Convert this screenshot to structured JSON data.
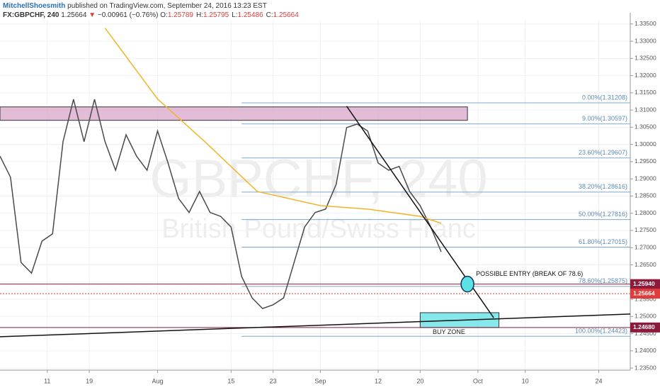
{
  "header": {
    "author": "MitchellShoesmith",
    "published": "published on TradingView.com, September 24, 2016 13:23 EST",
    "symbol": "FX:GBPCHF, 240",
    "last": "1.25664",
    "direction": "▼",
    "change": "−0.00961 (−0.76%)",
    "ohlc": [
      {
        "label": "O:",
        "value": "1.25789"
      },
      {
        "label": "H:",
        "value": "1.25795"
      },
      {
        "label": "L:",
        "value": "1.25486"
      },
      {
        "label": "C:",
        "value": "1.25664"
      }
    ]
  },
  "chart_data": {
    "type": "line",
    "watermark": {
      "symbol": "GBPCHF, 240",
      "name": "British Pound/Swiss Franc"
    },
    "xlim": [
      "07-02",
      "10-30"
    ],
    "xticks": [
      {
        "value": "07-11",
        "label": "11"
      },
      {
        "value": "07-19",
        "label": "19"
      },
      {
        "value": "08-01",
        "label": "Aug"
      },
      {
        "value": "08-15",
        "label": "15"
      },
      {
        "value": "08-23",
        "label": "23"
      },
      {
        "value": "09-01",
        "label": "Sep"
      },
      {
        "value": "09-12",
        "label": "12"
      },
      {
        "value": "09-20",
        "label": "20"
      },
      {
        "value": "10-01",
        "label": "Oct"
      },
      {
        "value": "10-10",
        "label": "10"
      },
      {
        "value": "10-24",
        "label": "24"
      }
    ],
    "ylim": [
      1.2344,
      1.3362
    ],
    "yticks": [
      {
        "value": 1.235,
        "label": "1.23500"
      },
      {
        "value": 1.24,
        "label": "1.24000"
      },
      {
        "value": 1.245,
        "label": "1.24500"
      },
      {
        "value": 1.25,
        "label": "1.25000"
      },
      {
        "value": 1.255,
        "label": "1.25500"
      },
      {
        "value": 1.26,
        "label": "1.26000"
      },
      {
        "value": 1.265,
        "label": "1.26500"
      },
      {
        "value": 1.27,
        "label": "1.27000"
      },
      {
        "value": 1.275,
        "label": "1.27500"
      },
      {
        "value": 1.28,
        "label": "1.28000"
      },
      {
        "value": 1.285,
        "label": "1.28500"
      },
      {
        "value": 1.29,
        "label": "1.29000"
      },
      {
        "value": 1.295,
        "label": "1.29500"
      },
      {
        "value": 1.3,
        "label": "1.30000"
      },
      {
        "value": 1.305,
        "label": "1.30500"
      },
      {
        "value": 1.31,
        "label": "1.31000"
      },
      {
        "value": 1.315,
        "label": "1.31500"
      },
      {
        "value": 1.32,
        "label": "1.32000"
      },
      {
        "value": 1.325,
        "label": "1.32500"
      },
      {
        "value": 1.33,
        "label": "1.33000"
      },
      {
        "value": 1.335,
        "label": "1.33500"
      }
    ],
    "grid": true,
    "series": [
      {
        "color": "#4a4a4a",
        "x": [
          "07-02",
          "07-04",
          "07-06",
          "07-08",
          "07-10",
          "07-12",
          "07-14",
          "07-16",
          "07-18",
          "07-20",
          "07-22",
          "07-24",
          "07-26",
          "07-28",
          "07-30",
          "08-01",
          "08-03",
          "08-05",
          "08-07",
          "08-09",
          "08-11",
          "08-13",
          "08-15",
          "08-17",
          "08-19",
          "08-21",
          "08-23",
          "08-25",
          "08-27",
          "08-29",
          "08-31",
          "09-02",
          "09-04",
          "09-06",
          "09-08",
          "09-10",
          "09-12",
          "09-14",
          "09-16",
          "09-18",
          "09-20",
          "09-22",
          "09-24"
        ],
        "values": [
          1.2966,
          1.2905,
          1.2657,
          1.2626,
          1.2719,
          1.274,
          1.3008,
          1.3131,
          1.3008,
          1.3131,
          1.3008,
          1.2925,
          1.3028,
          1.2966,
          1.2925,
          1.3039,
          1.2946,
          1.2843,
          1.2802,
          1.2863,
          1.2802,
          1.2791,
          1.276,
          1.2616,
          1.2554,
          1.2523,
          1.2534,
          1.2554,
          1.2657,
          1.276,
          1.2802,
          1.2812,
          1.2884,
          1.3049,
          1.3059,
          1.3039,
          1.2946,
          1.2925,
          1.2936,
          1.2863,
          1.2822,
          1.276,
          1.2688
        ]
      },
      {
        "color": "#f0b429",
        "x": [
          "07-22",
          "08-01",
          "08-10",
          "08-20",
          "09-01",
          "09-10",
          "09-20",
          "09-24"
        ],
        "values": [
          1.3338,
          1.3132,
          1.3008,
          1.2863,
          1.2822,
          1.2812,
          1.2791,
          1.2771
        ]
      }
    ],
    "fib": {
      "color": "#7fa8c9",
      "start": "08-17",
      "levels": [
        {
          "value": 1.31208,
          "label": "0.00%(1.31208)"
        },
        {
          "value": 1.30597,
          "label": "9.00%(1.30597)"
        },
        {
          "value": 1.29607,
          "label": "23.60%(1.29607)"
        },
        {
          "value": 1.28616,
          "label": "38.20%(1.28616)"
        },
        {
          "value": 1.27816,
          "label": "50.00%(1.27816)"
        },
        {
          "value": 1.27015,
          "label": "61.80%(1.27015)"
        },
        {
          "value": 1.25875,
          "label": "78.60%(1.25875)"
        },
        {
          "value": 1.24423,
          "label": "100.00%(1.24423)"
        }
      ]
    },
    "zones": [
      {
        "x": [
          "07-02",
          "09-29"
        ],
        "y": [
          1.307,
          1.3109
        ],
        "color": "#d9a6c9"
      },
      {
        "x": [
          "09-20",
          "10-05"
        ],
        "y": [
          1.2468,
          1.2511
        ],
        "color": "#5ce1e6",
        "label": "BUY ZONE"
      }
    ],
    "trendlines": [
      {
        "x": [
          "09-06",
          "10-04"
        ],
        "values": [
          1.3111,
          1.2496
        ]
      },
      {
        "x": [
          "07-02",
          "10-30"
        ],
        "values": [
          1.2441,
          1.2507
        ]
      }
    ],
    "entry": {
      "x": "09-29",
      "value": 1.2594,
      "label": "POSSIBLE ENTRY (BREAK OF 78.6)",
      "color": "#5ce1e6"
    },
    "levels": [
      {
        "value": 1.2594,
        "label": "1.25940",
        "color": "#8b1a3b"
      },
      {
        "value": 1.25664,
        "label": "1.25664",
        "color": "#e03c3c",
        "dash": true
      },
      {
        "value": 1.2468,
        "label": "1.24680",
        "color": "#8b1a3b"
      }
    ]
  }
}
